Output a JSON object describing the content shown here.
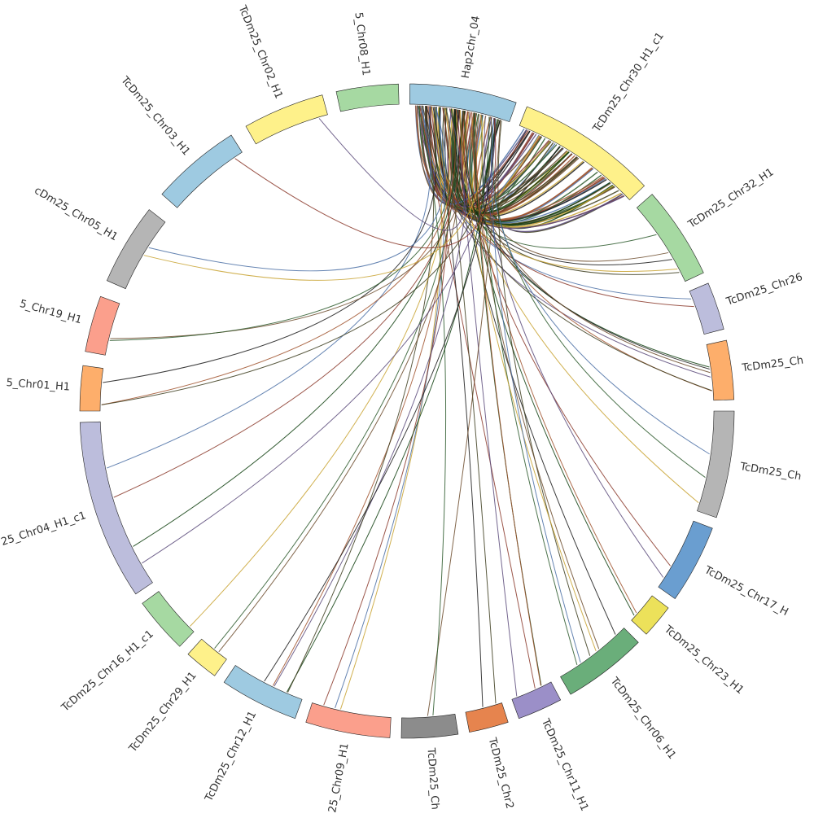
{
  "diagram": {
    "type": "circos-synteny",
    "focus_segment": "Hap2chr_04",
    "segments": [
      {
        "id": "Hap2chr_04",
        "label": "Hap2chr_04",
        "color": "#9ecae1"
      },
      {
        "id": "TcDm25_Chr30_H1_c1",
        "label": "TcDm25_Chr30_H1_c1",
        "color": "#fef18a"
      },
      {
        "id": "TcDm25_Chr32_H1",
        "label": "TcDm25_Chr32_H1",
        "color": "#a6d9a2"
      },
      {
        "id": "TcDm25_Chr26",
        "label": "TcDm25_Chr26",
        "color": "#bcbddc"
      },
      {
        "id": "TcDm25_Ch",
        "label": "TcDm25_Ch",
        "color": "#fdae6b"
      },
      {
        "id": "TcDm25_Ch_b",
        "label": "TcDm25_Ch",
        "color": "#b5b5b5"
      },
      {
        "id": "TcDm25_Chr17_H",
        "label": "TcDm25_Chr17_H",
        "color": "#6a9ed0"
      },
      {
        "id": "TcDm25_Chr23_H1",
        "label": "TcDm25_Chr23_H1",
        "color": "#ece15a"
      },
      {
        "id": "TcDm25_Chr06_H1",
        "label": "TcDm25_Chr06_H1",
        "color": "#6aae7a"
      },
      {
        "id": "TcDm25_Chr11_H1",
        "label": "TcDm25_Chr11_H1",
        "color": "#9b8fc8"
      },
      {
        "id": "TcDm25_Chr2",
        "label": "TcDm25_Chr2",
        "color": "#e6844e"
      },
      {
        "id": "TcDm25_Ch_c",
        "label": "TcDm25_Ch",
        "color": "#8c8c8c"
      },
      {
        "id": "TcDm25_Chr09_H1",
        "label": "25_Chr09_H1",
        "color": "#fb9f8c"
      },
      {
        "id": "TcDm25_Chr12_H1",
        "label": "TcDm25_Chr12_H1",
        "color": "#9ecae1"
      },
      {
        "id": "TcDm25_Chr29_H1",
        "label": "TcDm25_Chr29_H1",
        "color": "#fef18a"
      },
      {
        "id": "TcDm25_Chr16_H1_c1",
        "label": "TcDm25_Chr16_H1_c1",
        "color": "#a6d9a2"
      },
      {
        "id": "TcDm25_Chr04_H1_c1",
        "label": "25_Chr04_H1_c1",
        "color": "#bcbddc"
      },
      {
        "id": "TcDm25_Chr01_H1",
        "label": "5_Chr01_H1",
        "color": "#fdae6b"
      },
      {
        "id": "TcDm25_Chr19_H1",
        "label": "5_Chr19_H1",
        "color": "#fb9f8c"
      },
      {
        "id": "TcDm25_Chr05_H1",
        "label": "cDm25_Chr05_H1",
        "color": "#b5b5b5"
      },
      {
        "id": "TcDm25_Chr03_H1",
        "label": "TcDm25_Chr03_H1",
        "color": "#9ecae1"
      },
      {
        "id": "TcDm25_Chr02_H1",
        "label": "TcDm25_Chr02_H1",
        "color": "#fef18a"
      },
      {
        "id": "TcDm25_Chr08_H1",
        "label": "5_Chr08_H1",
        "color": "#a6d9a2"
      }
    ],
    "link_colors": [
      "#1a1a1a",
      "#3d3d1f",
      "#6b4a2a",
      "#2d5a2d",
      "#c8a230",
      "#4a6fa5",
      "#8b3a2b",
      "#5a4a7a",
      "#0f3f0f",
      "#a0522d"
    ],
    "link_counts": [
      {
        "target": "TcDm25_Chr30_H1_c1",
        "count": 70
      },
      {
        "target": "TcDm25_Chr32_H1",
        "count": 5
      },
      {
        "target": "TcDm25_Chr26",
        "count": 2
      },
      {
        "target": "TcDm25_Ch",
        "count": 6
      },
      {
        "target": "TcDm25_Ch_b",
        "count": 3
      },
      {
        "target": "TcDm25_Chr17_H",
        "count": 2
      },
      {
        "target": "TcDm25_Chr23_H1",
        "count": 2
      },
      {
        "target": "TcDm25_Chr06_H1",
        "count": 6
      },
      {
        "target": "TcDm25_Chr11_H1",
        "count": 4
      },
      {
        "target": "TcDm25_Chr2",
        "count": 2
      },
      {
        "target": "TcDm25_Ch_c",
        "count": 2
      },
      {
        "target": "TcDm25_Chr09_H1",
        "count": 3
      },
      {
        "target": "TcDm25_Chr12_H1",
        "count": 5
      },
      {
        "target": "TcDm25_Chr29_H1",
        "count": 2
      },
      {
        "target": "TcDm25_Chr16_H1_c1",
        "count": 1
      },
      {
        "target": "TcDm25_Chr04_H1_c1",
        "count": 4
      },
      {
        "target": "TcDm25_Chr01_H1",
        "count": 3
      },
      {
        "target": "TcDm25_Chr19_H1",
        "count": 2
      },
      {
        "target": "TcDm25_Chr05_H1",
        "count": 2
      },
      {
        "target": "TcDm25_Chr03_H1",
        "count": 1
      },
      {
        "target": "TcDm25_Chr02_H1",
        "count": 1
      }
    ]
  }
}
